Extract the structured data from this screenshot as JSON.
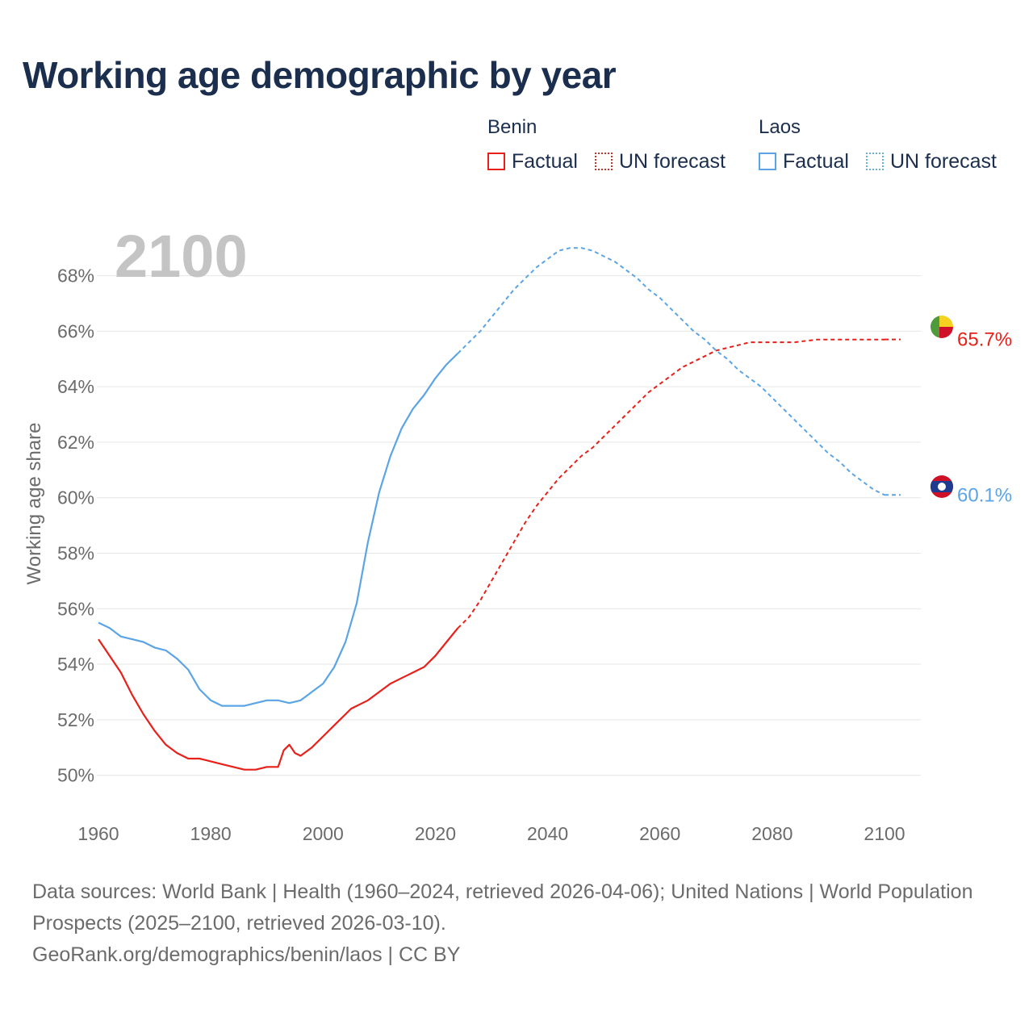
{
  "title": "Working age demographic by year",
  "legend": {
    "groups": [
      {
        "name": "Benin",
        "factual_label": "Factual",
        "forecast_label": "UN forecast",
        "color": "#e8201a"
      },
      {
        "name": "Laos",
        "factual_label": "Factual",
        "forecast_label": "UN forecast",
        "color": "#5ba4e5"
      }
    ]
  },
  "year_display": "2100",
  "footer": {
    "sources": "Data sources: World Bank | Health (1960–2024, retrieved 2026-04-06); United Nations | World Population Prospects (2025–2100, retrieved 2026-03-10).",
    "credit": "GeoRank.org/demographics/benin/laos | CC BY"
  },
  "chart_data": {
    "type": "line",
    "title": "Working age demographic by year",
    "xlabel": "",
    "ylabel": "Working age share",
    "xlim": [
      1960,
      2100
    ],
    "ylim": [
      49,
      69.5
    ],
    "x_ticks": [
      1960,
      1980,
      2000,
      2020,
      2040,
      2060,
      2080,
      2100
    ],
    "y_ticks": [
      50,
      52,
      54,
      56,
      58,
      60,
      62,
      64,
      66,
      68
    ],
    "y_tick_labels": [
      "50%",
      "52%",
      "54%",
      "56%",
      "58%",
      "60%",
      "62%",
      "64%",
      "66%",
      "68%"
    ],
    "grid": "horizontal",
    "forecast_start_year": 2024,
    "series": [
      {
        "name": "Benin",
        "color": "#e8201a",
        "end_label": "65.7%",
        "points": [
          [
            1960,
            54.9
          ],
          [
            1962,
            54.3
          ],
          [
            1964,
            53.7
          ],
          [
            1966,
            52.9
          ],
          [
            1968,
            52.2
          ],
          [
            1970,
            51.6
          ],
          [
            1972,
            51.1
          ],
          [
            1974,
            50.8
          ],
          [
            1976,
            50.6
          ],
          [
            1978,
            50.6
          ],
          [
            1980,
            50.5
          ],
          [
            1982,
            50.4
          ],
          [
            1984,
            50.3
          ],
          [
            1986,
            50.2
          ],
          [
            1988,
            50.2
          ],
          [
            1990,
            50.3
          ],
          [
            1992,
            50.3
          ],
          [
            1993,
            50.9
          ],
          [
            1994,
            51.1
          ],
          [
            1995,
            50.8
          ],
          [
            1996,
            50.7
          ],
          [
            1998,
            51.0
          ],
          [
            2000,
            51.4
          ],
          [
            2002,
            51.8
          ],
          [
            2004,
            52.2
          ],
          [
            2005,
            52.4
          ],
          [
            2008,
            52.7
          ],
          [
            2010,
            53.0
          ],
          [
            2012,
            53.3
          ],
          [
            2014,
            53.5
          ],
          [
            2016,
            53.7
          ],
          [
            2018,
            53.9
          ],
          [
            2020,
            54.3
          ],
          [
            2022,
            54.8
          ],
          [
            2024,
            55.3
          ],
          [
            2026,
            55.7
          ],
          [
            2028,
            56.3
          ],
          [
            2030,
            57.0
          ],
          [
            2032,
            57.7
          ],
          [
            2034,
            58.4
          ],
          [
            2036,
            59.1
          ],
          [
            2038,
            59.7
          ],
          [
            2040,
            60.2
          ],
          [
            2042,
            60.7
          ],
          [
            2044,
            61.1
          ],
          [
            2046,
            61.5
          ],
          [
            2048,
            61.8
          ],
          [
            2050,
            62.2
          ],
          [
            2052,
            62.6
          ],
          [
            2054,
            63.0
          ],
          [
            2056,
            63.4
          ],
          [
            2058,
            63.8
          ],
          [
            2060,
            64.1
          ],
          [
            2062,
            64.4
          ],
          [
            2064,
            64.7
          ],
          [
            2066,
            64.9
          ],
          [
            2068,
            65.1
          ],
          [
            2070,
            65.3
          ],
          [
            2072,
            65.4
          ],
          [
            2074,
            65.5
          ],
          [
            2076,
            65.6
          ],
          [
            2080,
            65.6
          ],
          [
            2084,
            65.6
          ],
          [
            2088,
            65.7
          ],
          [
            2094,
            65.7
          ],
          [
            2100,
            65.7
          ]
        ]
      },
      {
        "name": "Laos",
        "color": "#5ba4e5",
        "end_label": "60.1%",
        "points": [
          [
            1960,
            55.5
          ],
          [
            1962,
            55.3
          ],
          [
            1964,
            55.0
          ],
          [
            1966,
            54.9
          ],
          [
            1968,
            54.8
          ],
          [
            1970,
            54.6
          ],
          [
            1972,
            54.5
          ],
          [
            1974,
            54.2
          ],
          [
            1976,
            53.8
          ],
          [
            1978,
            53.1
          ],
          [
            1980,
            52.7
          ],
          [
            1982,
            52.5
          ],
          [
            1984,
            52.5
          ],
          [
            1986,
            52.5
          ],
          [
            1988,
            52.6
          ],
          [
            1990,
            52.7
          ],
          [
            1992,
            52.7
          ],
          [
            1994,
            52.6
          ],
          [
            1996,
            52.7
          ],
          [
            1998,
            53.0
          ],
          [
            2000,
            53.3
          ],
          [
            2002,
            53.9
          ],
          [
            2004,
            54.8
          ],
          [
            2006,
            56.2
          ],
          [
            2008,
            58.4
          ],
          [
            2010,
            60.2
          ],
          [
            2012,
            61.5
          ],
          [
            2014,
            62.5
          ],
          [
            2016,
            63.2
          ],
          [
            2018,
            63.7
          ],
          [
            2020,
            64.3
          ],
          [
            2022,
            64.8
          ],
          [
            2024,
            65.2
          ],
          [
            2026,
            65.6
          ],
          [
            2028,
            66.0
          ],
          [
            2030,
            66.5
          ],
          [
            2032,
            67.0
          ],
          [
            2034,
            67.5
          ],
          [
            2036,
            67.9
          ],
          [
            2038,
            68.3
          ],
          [
            2040,
            68.6
          ],
          [
            2042,
            68.9
          ],
          [
            2044,
            69.0
          ],
          [
            2046,
            69.0
          ],
          [
            2048,
            68.9
          ],
          [
            2050,
            68.7
          ],
          [
            2052,
            68.5
          ],
          [
            2054,
            68.2
          ],
          [
            2056,
            67.9
          ],
          [
            2058,
            67.5
          ],
          [
            2060,
            67.2
          ],
          [
            2062,
            66.8
          ],
          [
            2064,
            66.4
          ],
          [
            2066,
            66.0
          ],
          [
            2068,
            65.7
          ],
          [
            2070,
            65.3
          ],
          [
            2072,
            65.0
          ],
          [
            2074,
            64.6
          ],
          [
            2076,
            64.3
          ],
          [
            2078,
            64.0
          ],
          [
            2080,
            63.6
          ],
          [
            2082,
            63.2
          ],
          [
            2084,
            62.8
          ],
          [
            2086,
            62.4
          ],
          [
            2088,
            62.0
          ],
          [
            2090,
            61.6
          ],
          [
            2092,
            61.3
          ],
          [
            2094,
            60.9
          ],
          [
            2096,
            60.6
          ],
          [
            2098,
            60.3
          ],
          [
            2100,
            60.1
          ]
        ]
      }
    ]
  }
}
